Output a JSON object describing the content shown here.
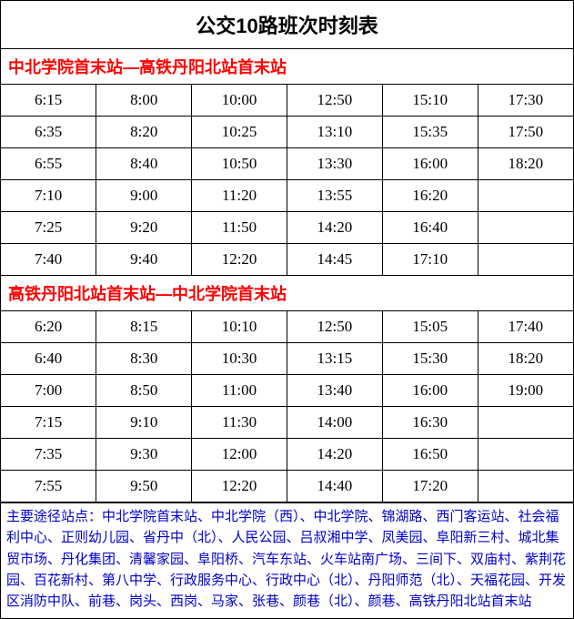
{
  "title": "公交10路班次时刻表",
  "colors": {
    "direction_text": "#ff0000",
    "stops_text": "#0000cc",
    "border": "#000000",
    "background": "#ffffff"
  },
  "direction1": {
    "label": "中北学院首末站—高铁丹阳北站首末站",
    "rows": [
      [
        "6:15",
        "8:00",
        "10:00",
        "12:50",
        "15:10",
        "17:30"
      ],
      [
        "6:35",
        "8:20",
        "10:25",
        "13:10",
        "15:35",
        "17:50"
      ],
      [
        "6:55",
        "8:40",
        "10:50",
        "13:30",
        "16:00",
        "18:20"
      ],
      [
        "7:10",
        "9:00",
        "11:20",
        "13:55",
        "16:20",
        ""
      ],
      [
        "7:25",
        "9:20",
        "11:50",
        "14:20",
        "16:40",
        ""
      ],
      [
        "7:40",
        "9:40",
        "12:20",
        "14:45",
        "17:10",
        ""
      ]
    ]
  },
  "direction2": {
    "label": "高铁丹阳北站首末站—中北学院首末站",
    "rows": [
      [
        "6:20",
        "8:15",
        "10:10",
        "12:50",
        "15:05",
        "17:40"
      ],
      [
        "6:40",
        "8:30",
        "10:30",
        "13:15",
        "15:30",
        "18:20"
      ],
      [
        "7:00",
        "8:50",
        "11:00",
        "13:40",
        "16:00",
        "19:00"
      ],
      [
        "7:15",
        "9:10",
        "11:30",
        "14:00",
        "16:30",
        ""
      ],
      [
        "7:35",
        "9:30",
        "12:00",
        "14:20",
        "16:50",
        ""
      ],
      [
        "7:55",
        "9:50",
        "12:20",
        "14:40",
        "17:20",
        ""
      ]
    ]
  },
  "stops_text": "主要途径站点：中北学院首末站、中北学院（西）、中北学院、锦湖路、西门客运站、社会福利中心、正则幼儿园、省丹中（北）、人民公园、吕叔湘中学、凤美园、阜阳新三村、城北集贸市场、丹化集团、清馨家园、阜阳桥、汽车东站、火车站南广场、三间下、双庙村、紫荆花园、百花新村、第八中学、行政服务中心、行政中心（北）、丹阳师范（北）、天福花园、开发区消防中队、前巷、岗头、西岗、马家、张巷、颜巷（北）、颜巷、高铁丹阳北站首末站"
}
